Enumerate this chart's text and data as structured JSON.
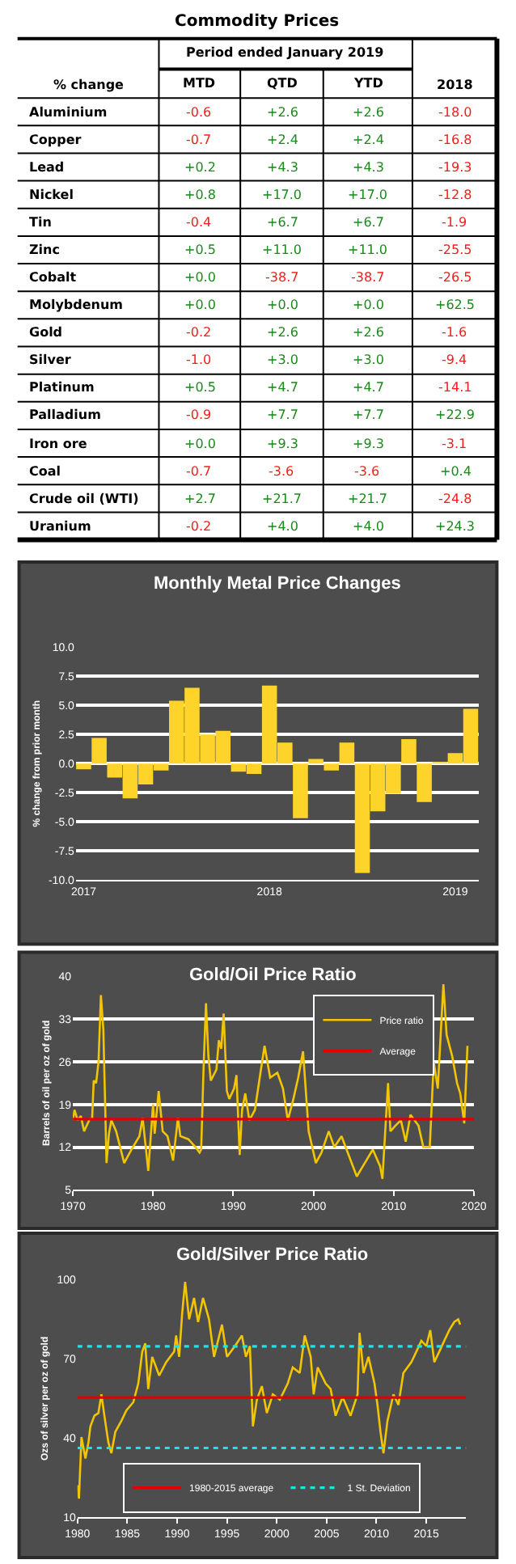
{
  "chart_data": [
    {
      "type": "heatmap",
      "title": "Commodity Prices",
      "subtitle": "Period ended January 2019",
      "ylabel": "% change",
      "categories": [
        "MTD",
        "QTD",
        "YTD",
        "2018"
      ],
      "y_categories": [
        "Aluminium",
        "Copper",
        "Lead",
        "Nickel",
        "Tin",
        "Zinc",
        "Cobalt",
        "Molybdenum",
        "Gold",
        "Silver",
        "Platinum",
        "Palladium",
        "Iron ore",
        "Coal",
        "Crude oil (WTI)",
        "Uranium"
      ],
      "cells": [
        [
          -0.6,
          2.6,
          2.6,
          -18.0
        ],
        [
          -0.7,
          2.4,
          2.4,
          -16.8
        ],
        [
          0.2,
          4.3,
          4.3,
          -19.3
        ],
        [
          0.8,
          17.0,
          17.0,
          -12.8
        ],
        [
          -0.4,
          6.7,
          6.7,
          -1.9
        ],
        [
          0.5,
          11.0,
          11.0,
          -25.5
        ],
        [
          0.0,
          -38.7,
          -38.7,
          -26.5
        ],
        [
          0.0,
          0.0,
          0.0,
          62.5
        ],
        [
          -0.2,
          2.6,
          2.6,
          -1.6
        ],
        [
          -1.0,
          3.0,
          3.0,
          -9.4
        ],
        [
          0.5,
          4.7,
          4.7,
          -14.1
        ],
        [
          -0.9,
          7.7,
          7.7,
          22.9
        ],
        [
          0.0,
          9.3,
          9.3,
          -3.1
        ],
        [
          -0.7,
          -3.6,
          -3.6,
          0.4
        ],
        [
          2.7,
          21.7,
          21.7,
          -24.8
        ],
        [
          -0.2,
          4.0,
          4.0,
          24.3
        ]
      ],
      "cell_labels": [
        [
          "-0.6",
          "+2.6",
          "+2.6",
          "-18.0"
        ],
        [
          "-0.7",
          "+2.4",
          "+2.4",
          "-16.8"
        ],
        [
          "+0.2",
          "+4.3",
          "+4.3",
          "-19.3"
        ],
        [
          "+0.8",
          "+17.0",
          "+17.0",
          "-12.8"
        ],
        [
          "-0.4",
          "+6.7",
          "+6.7",
          "-1.9"
        ],
        [
          "+0.5",
          "+11.0",
          "+11.0",
          "-25.5"
        ],
        [
          "+0.0",
          "-38.7",
          "-38.7",
          "-26.5"
        ],
        [
          "+0.0",
          "+0.0",
          "+0.0",
          "+62.5"
        ],
        [
          "-0.2",
          "+2.6",
          "+2.6",
          "-1.6"
        ],
        [
          "-1.0",
          "+3.0",
          "+3.0",
          "-9.4"
        ],
        [
          "+0.5",
          "+4.7",
          "+4.7",
          "-14.1"
        ],
        [
          "-0.9",
          "+7.7",
          "+7.7",
          "+22.9"
        ],
        [
          "+0.0",
          "+9.3",
          "+9.3",
          "-3.1"
        ],
        [
          "-0.7",
          "-3.6",
          "-3.6",
          "+0.4"
        ],
        [
          "+2.7",
          "+21.7",
          "+21.7",
          "-24.8"
        ],
        [
          "-0.2",
          "+4.0",
          "+4.0",
          "+24.3"
        ]
      ]
    },
    {
      "type": "bar",
      "title": "Monthly Metal Price Changes",
      "ylabel": "% change from prior month",
      "color": "#ffd42a",
      "grid": "y",
      "categories": [
        "2017",
        null,
        null,
        null,
        null,
        null,
        null,
        null,
        null,
        null,
        null,
        null,
        "2018",
        null,
        null,
        null,
        null,
        null,
        null,
        null,
        null,
        null,
        null,
        null,
        "2019",
        null
      ],
      "values": [
        -0.5,
        2.2,
        -1.2,
        -3.0,
        -1.8,
        -0.6,
        5.4,
        6.5,
        2.5,
        2.8,
        -0.7,
        -0.9,
        6.7,
        1.8,
        -4.7,
        0.4,
        -0.6,
        1.8,
        -9.4,
        -4.1,
        -2.6,
        2.1,
        -3.3,
        0.1,
        0.9,
        4.7
      ],
      "ylim": [
        -10,
        10
      ],
      "yticks": [
        {
          "value": -10,
          "label": "-10.0"
        },
        {
          "value": -7.5,
          "label": "-7.5"
        },
        {
          "value": -5,
          "label": "-5.0"
        },
        {
          "value": -2.5,
          "label": "-2.5"
        },
        {
          "value": 0,
          "label": "0.0"
        },
        {
          "value": 2.5,
          "label": "2.5"
        },
        {
          "value": 5,
          "label": "5.0"
        },
        {
          "value": 7.5,
          "label": "7.5"
        },
        {
          "value": 10,
          "label": "10.0"
        }
      ]
    },
    {
      "type": "line",
      "title": "Gold/Oil Price Ratio",
      "ylabel": "Barrels of oil per oz of gold",
      "grid": "y",
      "legend": "top right",
      "x": [
        1970,
        1970.2,
        1970.6,
        1971.0,
        1971.4,
        1972.1,
        1972.4,
        1972.6,
        1972.9,
        1973.2,
        1973.5,
        1973.8,
        1974.2,
        1974.5,
        1974.8,
        1975.4,
        1976.4,
        1977.3,
        1978.3,
        1978.7,
        1979.4,
        1980.0,
        1980.2,
        1980.7,
        1981.2,
        1981.8,
        1982.5,
        1983.1,
        1983.4,
        1984.4,
        1985.3,
        1985.8,
        1986.0,
        1986.3,
        1986.6,
        1986.9,
        1987.2,
        1987.9,
        1988.2,
        1988.5,
        1988.8,
        1989.2,
        1989.5,
        1990.1,
        1990.4,
        1990.8,
        1991.1,
        1991.5,
        1992.0,
        1992.7,
        1993.3,
        1993.9,
        1994.6,
        1995.5,
        1996.2,
        1996.8,
        1997.5,
        1998.1,
        1998.7,
        1999.4,
        2000.3,
        2001.0,
        2001.9,
        2002.6,
        2003.5,
        2004.5,
        2005.4,
        2006.4,
        2007.4,
        2008.3,
        2008.6,
        2009.3,
        2009.6,
        2010.2,
        2010.9,
        2011.5,
        2012.1,
        2013.1,
        2013.7,
        2014.5,
        2015.0,
        2015.5,
        2016.2,
        2016.6,
        2017.3,
        2017.9,
        2018.3,
        2018.8,
        2019.2
      ],
      "series": [
        {
          "name": "Price ratio",
          "color": "#f2c500",
          "values": [
            16.4,
            18.1,
            16.4,
            17.1,
            14.6,
            16.6,
            16.6,
            22.9,
            22.5,
            26.0,
            36.9,
            31.3,
            9.4,
            14.2,
            16.4,
            14.6,
            9.4,
            11.6,
            13.8,
            16.8,
            8.1,
            19.0,
            14.2,
            21.2,
            14.6,
            13.8,
            9.8,
            16.8,
            13.8,
            13.3,
            12.0,
            11.1,
            11.6,
            25.1,
            35.6,
            26.9,
            22.9,
            24.7,
            29.5,
            28.1,
            33.9,
            21.2,
            19.9,
            21.6,
            23.8,
            10.7,
            18.1,
            20.8,
            16.4,
            18.1,
            23.4,
            28.6,
            23.4,
            24.2,
            21.6,
            16.4,
            19.9,
            23.4,
            27.7,
            14.6,
            9.4,
            11.1,
            14.6,
            12.0,
            13.8,
            10.3,
            7.2,
            9.4,
            11.6,
            8.9,
            6.8,
            22.5,
            14.6,
            15.5,
            16.4,
            12.9,
            17.3,
            15.5,
            12.0,
            12.0,
            26.0,
            21.6,
            38.7,
            30.4,
            26.9,
            22.5,
            20.8,
            15.9,
            28.6
          ]
        }
      ],
      "ref_lines": [
        {
          "axis": "y",
          "value": 16.6,
          "label": "Average",
          "color": "#e00000"
        }
      ],
      "xlim": [
        1970,
        2020
      ],
      "xticks": [
        1970,
        1980,
        1990,
        2000,
        2010,
        2020
      ],
      "ylim": [
        5,
        40
      ],
      "yticks": [
        5,
        12,
        19,
        26,
        33,
        40
      ]
    },
    {
      "type": "line",
      "title": "Gold/Silver Price Ratio",
      "ylabel": "Ozs of silver per oz of gold",
      "legend": "bottom",
      "x": [
        1980.0,
        1980.15,
        1980.4,
        1980.8,
        1981.1,
        1981.3,
        1981.7,
        1982.1,
        1982.4,
        1982.7,
        1983.1,
        1983.4,
        1983.8,
        1984.4,
        1984.9,
        1985.6,
        1986.1,
        1986.5,
        1986.8,
        1987.1,
        1987.5,
        1988.2,
        1988.9,
        1989.7,
        1989.9,
        1990.2,
        1990.5,
        1990.8,
        1991.2,
        1991.7,
        1992.1,
        1992.6,
        1993.2,
        1993.7,
        1994.5,
        1995.0,
        1995.8,
        1996.5,
        1996.9,
        1997.3,
        1997.6,
        1998.0,
        1998.5,
        1999.0,
        1999.6,
        2000.3,
        2001.1,
        2001.6,
        2002.3,
        2002.8,
        2003.4,
        2003.7,
        2004.1,
        2004.9,
        2005.4,
        2005.9,
        2006.6,
        2007.4,
        2008.1,
        2008.3,
        2008.7,
        2009.2,
        2009.8,
        2010.1,
        2010.4,
        2010.7,
        2011.1,
        2011.7,
        2012.2,
        2012.7,
        2013.5,
        2014.0,
        2014.5,
        2015.0,
        2015.4,
        2015.8,
        2016.3,
        2016.8,
        2017.3,
        2017.8,
        2018.2,
        2018.4
      ],
      "series": [
        {
          "color": "#f2c500",
          "values": [
            22.2,
            17.1,
            40.4,
            32.3,
            38.4,
            44.5,
            48.5,
            49.5,
            56.6,
            48.5,
            38.4,
            34.3,
            42.4,
            46.5,
            50.5,
            53.6,
            60.7,
            72.8,
            75.9,
            58.6,
            70.8,
            63.7,
            68.8,
            72.8,
            78.9,
            70.8,
            87.0,
            99.2,
            85.0,
            93.1,
            84.0,
            93.1,
            85.0,
            70.8,
            83.0,
            70.8,
            74.9,
            78.9,
            70.8,
            74.9,
            44.5,
            54.6,
            59.7,
            49.5,
            56.6,
            54.6,
            60.7,
            66.8,
            64.7,
            78.9,
            70.8,
            56.6,
            66.8,
            60.7,
            58.6,
            48.5,
            55.6,
            48.5,
            56.6,
            79.9,
            64.7,
            70.8,
            60.7,
            52.6,
            42.4,
            34.3,
            46.5,
            56.6,
            52.6,
            64.7,
            68.8,
            72.8,
            76.9,
            74.9,
            80.9,
            68.8,
            72.8,
            76.9,
            80.9,
            84.0,
            85.0,
            83.0
          ]
        }
      ],
      "ref_lines": [
        {
          "axis": "y",
          "value": 55.4,
          "label": "1980-2015 average",
          "color": "#e00000",
          "line_style": "solid"
        },
        {
          "axis": "y",
          "value": 74.8,
          "label": "1 St. Deviation",
          "color": "#19e6e6",
          "line_style": "dotted"
        },
        {
          "axis": "y",
          "value": 36.3,
          "color": "#19e6e6",
          "line_style": "dotted"
        }
      ],
      "xlim": [
        1980,
        2019
      ],
      "xticks": [
        1980,
        1985,
        1990,
        1995,
        2000,
        2005,
        2010,
        2015
      ],
      "ylim": [
        10,
        100
      ],
      "yticks": [
        10,
        40,
        70,
        100
      ]
    }
  ]
}
